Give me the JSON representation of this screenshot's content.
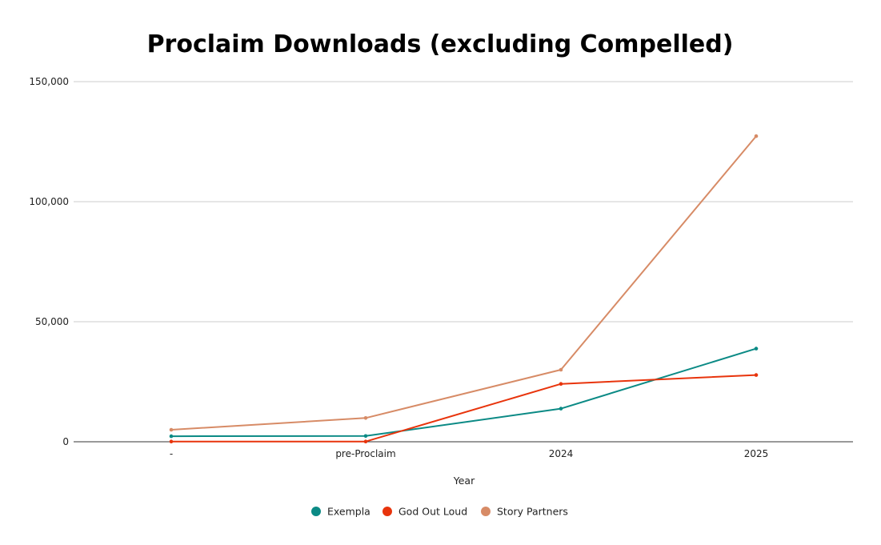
{
  "chart_data": {
    "type": "line",
    "title": "Proclaim Downloads (excluding Compelled)",
    "xlabel": "Year",
    "ylabel": "",
    "categories": [
      "-",
      "pre-Proclaim",
      "2024",
      "2025"
    ],
    "ylim": [
      0,
      150000
    ],
    "yticks": [
      0,
      50000,
      100000,
      150000
    ],
    "ytick_labels": [
      "0",
      "50,000",
      "100,000",
      "150,000"
    ],
    "grid": true,
    "legend_position": "bottom",
    "series": [
      {
        "name": "Exempla",
        "color": "#0b8a85",
        "values": [
          2300,
          2400,
          13800,
          38800
        ]
      },
      {
        "name": "God Out Loud",
        "color": "#e8340c",
        "values": [
          100,
          100,
          24100,
          27800
        ]
      },
      {
        "name": "Story Partners",
        "color": "#d78b66",
        "values": [
          5000,
          9900,
          30000,
          127300
        ]
      }
    ]
  }
}
